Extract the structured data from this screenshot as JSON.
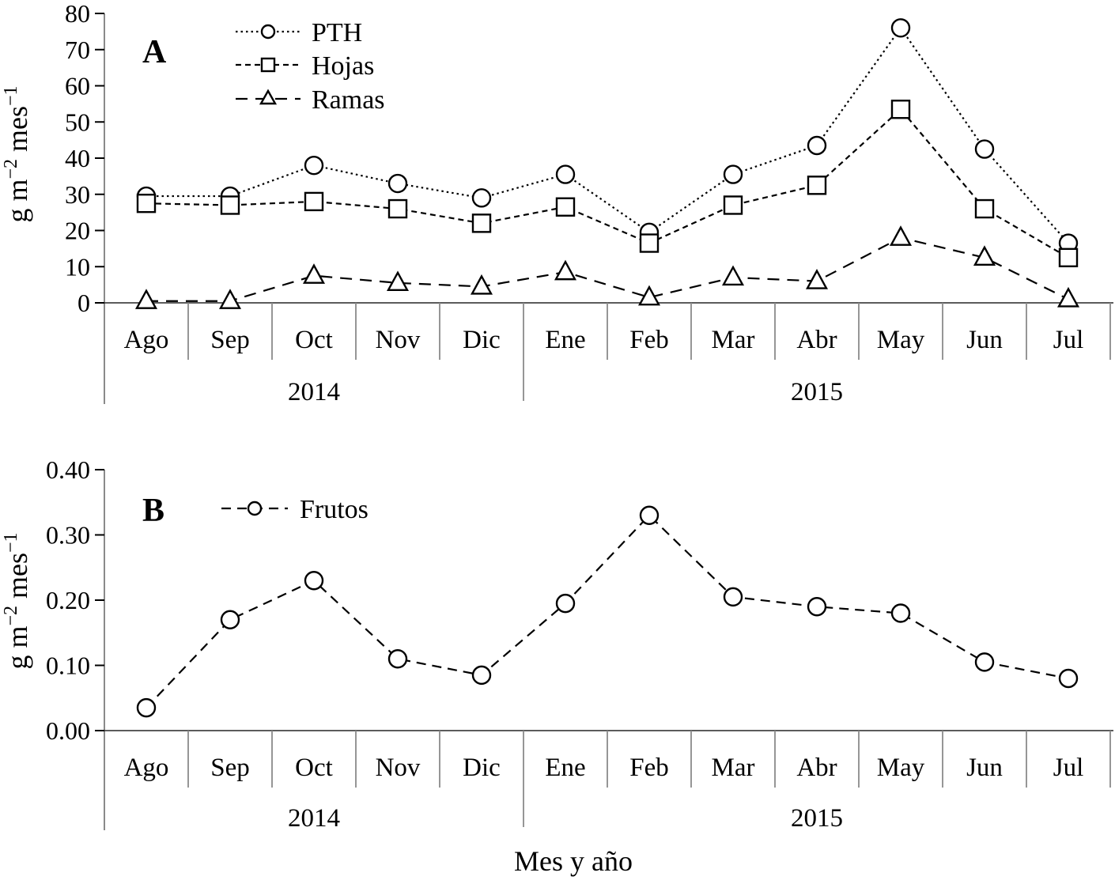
{
  "figure": {
    "x_axis_title": "Mes y año",
    "background": "#ffffff",
    "colors": {
      "line": "#000000",
      "axis": "#444444",
      "separator": "#8a8a8a",
      "marker_fill": "#ffffff"
    }
  },
  "chart_data": [
    {
      "type": "line",
      "panel_label": "A",
      "y_axis_title": "g m−2 mes−1",
      "y_axis_title_parts": [
        {
          "t": "g m"
        },
        {
          "t": "−2",
          "sup": true
        },
        {
          "t": " mes"
        },
        {
          "t": "−1",
          "sup": true
        }
      ],
      "categories": [
        "Ago",
        "Sep",
        "Oct",
        "Nov",
        "Dic",
        "Ene",
        "Feb",
        "Mar",
        "Abr",
        "May",
        "Jun",
        "Jul"
      ],
      "year_groups": [
        {
          "label": "2014",
          "months": 5
        },
        {
          "label": "2015",
          "months": 7
        }
      ],
      "ylim": [
        0,
        80
      ],
      "ytick_values": [
        0,
        10,
        20,
        30,
        40,
        50,
        60,
        70,
        80
      ],
      "ytick_labels": [
        "0",
        "10",
        "20",
        "30",
        "40",
        "50",
        "60",
        "70",
        "80"
      ],
      "grid": false,
      "legend_position": "top-left-inside",
      "series": [
        {
          "name": "PTH",
          "marker": "circle",
          "dash": "2.5 4",
          "values": [
            29.5,
            29.5,
            38,
            33,
            29,
            35.5,
            19.5,
            35.5,
            43.5,
            76,
            42.5,
            16.5
          ]
        },
        {
          "name": "Hojas",
          "marker": "square",
          "dash": "7 5",
          "values": [
            27.5,
            27,
            28,
            26,
            22,
            26.5,
            16.5,
            27,
            32.5,
            53.5,
            26,
            12.5
          ]
        },
        {
          "name": "Ramas",
          "marker": "triangle",
          "dash": "15 10",
          "values": [
            0.5,
            0.5,
            7.5,
            5.5,
            4.5,
            8.5,
            1.5,
            7,
            6,
            18,
            12.5,
            1
          ]
        }
      ]
    },
    {
      "type": "line",
      "panel_label": "B",
      "y_axis_title": "g m−2 mes−1",
      "y_axis_title_parts": [
        {
          "t": "g m"
        },
        {
          "t": "−2",
          "sup": true
        },
        {
          "t": " mes"
        },
        {
          "t": "−1",
          "sup": true
        }
      ],
      "categories": [
        "Ago",
        "Sep",
        "Oct",
        "Nov",
        "Dic",
        "Ene",
        "Feb",
        "Mar",
        "Abr",
        "May",
        "Jun",
        "Jul"
      ],
      "year_groups": [
        {
          "label": "2014",
          "months": 5
        },
        {
          "label": "2015",
          "months": 7
        }
      ],
      "ylim": [
        0,
        0.4
      ],
      "ytick_values": [
        0,
        0.1,
        0.2,
        0.3,
        0.4
      ],
      "ytick_labels": [
        "0.00",
        "0.10",
        "0.20",
        "0.30",
        "0.40"
      ],
      "grid": false,
      "legend_position": "top-left-inside",
      "series": [
        {
          "name": "Frutos",
          "marker": "circle",
          "dash": "12 8",
          "values": [
            0.035,
            0.17,
            0.23,
            0.11,
            0.085,
            0.195,
            0.33,
            0.205,
            0.19,
            0.18,
            0.105,
            0.08
          ]
        }
      ]
    }
  ]
}
